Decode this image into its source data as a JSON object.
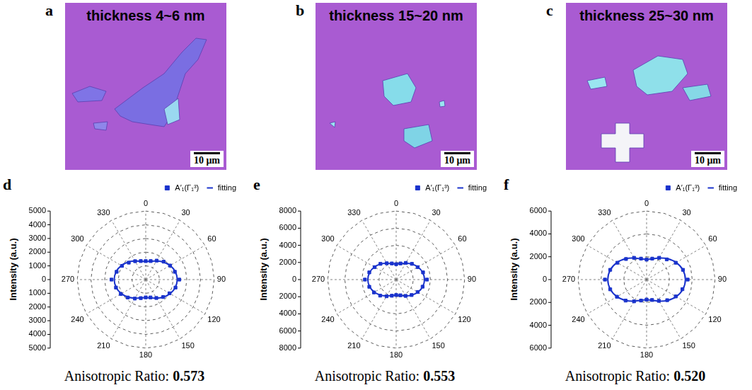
{
  "images": [
    {
      "panel": "a",
      "text": "thickness 4~6 nm",
      "scale_bar": "10 μm"
    },
    {
      "panel": "b",
      "text": "thickness 15~20 nm",
      "scale_bar": "10 μm"
    },
    {
      "panel": "c",
      "text": "thickness 25~30 nm",
      "scale_bar": "10 μm"
    }
  ],
  "chart_data": [
    {
      "panel": "d",
      "type": "polar",
      "y_label": "Intensity (a.u.)",
      "categories": [
        0,
        null,
        30,
        null,
        60,
        null,
        90,
        null,
        120,
        null,
        150,
        null,
        180,
        null,
        210,
        null,
        240,
        null,
        270,
        null,
        300,
        null,
        330,
        null
      ],
      "series": [
        {
          "name": "A′₁(Γ₁³)",
          "color": "#1a33cc",
          "marker": "square",
          "line_style": "none",
          "values": [
            1350,
            1400,
            1600,
            1850,
            2050,
            2200,
            2450,
            2250,
            2000,
            1800,
            1550,
            1350,
            1300,
            1400,
            1600,
            1850,
            2100,
            2250,
            2500,
            2200,
            2000,
            1750,
            1550,
            1400
          ]
        },
        {
          "name": "fitting",
          "color": "#1a33cc",
          "marker": "none",
          "line_style": "solid",
          "values": [
            1320,
            1386,
            1565,
            1810,
            2055,
            2234,
            2300,
            2234,
            2055,
            1810,
            1565,
            1386,
            1320,
            1386,
            1565,
            1810,
            2055,
            2234,
            2300,
            2234,
            2055,
            1810,
            1565,
            1386
          ]
        }
      ],
      "ylim": [
        0,
        5000
      ],
      "yticks": [
        0,
        1000,
        2000,
        3000,
        4000,
        5000
      ],
      "grid": true,
      "legend": "upper right",
      "annotation": {
        "label": "Anisotropic Ratio:",
        "value": 0.573
      }
    },
    {
      "panel": "e",
      "type": "polar",
      "y_label": "Intensity (a.u.)",
      "categories": [
        0,
        null,
        30,
        null,
        60,
        null,
        90,
        null,
        120,
        null,
        150,
        null,
        180,
        null,
        210,
        null,
        240,
        null,
        270,
        null,
        300,
        null,
        330,
        null
      ],
      "series": [
        {
          "name": "A′₁(Γ₁³)",
          "color": "#1a33cc",
          "marker": "square",
          "line_style": "none",
          "values": [
            1800,
            1950,
            2250,
            2600,
            2900,
            3250,
            3600,
            3200,
            2900,
            2550,
            2200,
            1900,
            1800,
            1950,
            2250,
            2650,
            3000,
            3250,
            3650,
            3250,
            2900,
            2600,
            2200,
            1950
          ]
        },
        {
          "name": "fitting",
          "color": "#1a33cc",
          "marker": "none",
          "line_style": "solid",
          "values": [
            1830,
            1929,
            2200,
            2570,
            2940,
            3211,
            3310,
            3211,
            2940,
            2570,
            2200,
            1929,
            1830,
            1929,
            2200,
            2570,
            2940,
            3211,
            3310,
            3211,
            2940,
            2570,
            2200,
            1929
          ]
        }
      ],
      "ylim": [
        0,
        8000
      ],
      "yticks": [
        0,
        2000,
        4000,
        6000,
        8000
      ],
      "grid": true,
      "legend": "upper right",
      "annotation": {
        "label": "Anisotropic Ratio:",
        "value": 0.553
      }
    },
    {
      "panel": "f",
      "type": "polar",
      "y_label": "Intensity (a.u.)",
      "categories": [
        0,
        null,
        30,
        null,
        60,
        null,
        90,
        null,
        120,
        null,
        150,
        null,
        180,
        null,
        210,
        null,
        240,
        null,
        270,
        null,
        300,
        null,
        330,
        null
      ],
      "series": [
        {
          "name": "A′₁(Γ₁³)",
          "color": "#1a33cc",
          "marker": "square",
          "line_style": "none",
          "values": [
            1750,
            1900,
            2200,
            2500,
            2950,
            3300,
            3600,
            3250,
            2950,
            2550,
            2150,
            1850,
            1750,
            1900,
            2200,
            2600,
            3000,
            3300,
            3650,
            3300,
            2950,
            2550,
            2200,
            1900
          ]
        },
        {
          "name": "fitting",
          "color": "#1a33cc",
          "marker": "none",
          "line_style": "solid",
          "values": [
            1770,
            1879,
            2178,
            2585,
            2993,
            3291,
            3400,
            3291,
            2993,
            2585,
            2178,
            1879,
            1770,
            1879,
            2178,
            2585,
            2993,
            3291,
            3400,
            3291,
            2993,
            2585,
            2178,
            1879
          ]
        }
      ],
      "ylim": [
        0,
        6000
      ],
      "yticks": [
        0,
        2000,
        4000,
        6000
      ],
      "grid": true,
      "legend": "upper right",
      "annotation": {
        "label": "Anisotropic Ratio:",
        "value": 0.52
      }
    }
  ]
}
